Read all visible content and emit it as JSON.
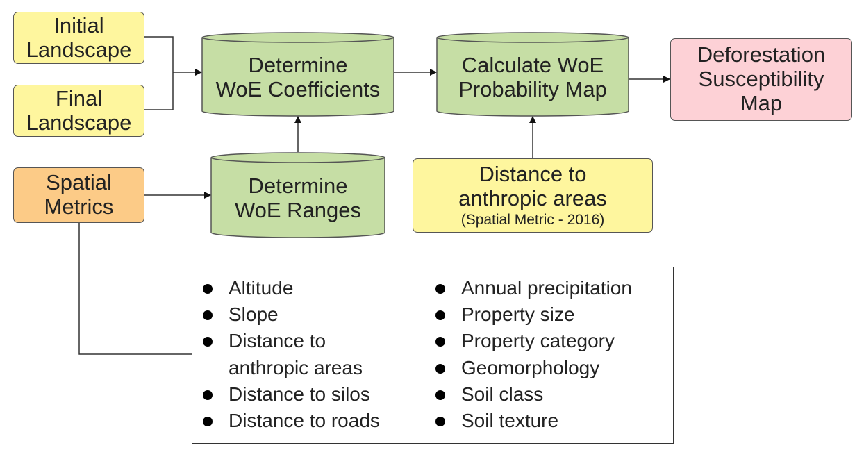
{
  "colors": {
    "input_fill": "#fef69e",
    "metrics_fill": "#fccb87",
    "process_fill": "#c6dea5",
    "output_fill": "#fdd1d6",
    "stroke": "#555555",
    "arrow": "#111111"
  },
  "nodes": {
    "initial_landscape": {
      "lines": [
        "Initial",
        "Landscape"
      ]
    },
    "final_landscape": {
      "lines": [
        "Final",
        "Landscape"
      ]
    },
    "spatial_metrics": {
      "lines": [
        "Spatial",
        "Metrics"
      ]
    },
    "determine_coefficients": {
      "lines": [
        "Determine",
        "WoE Coefficients"
      ]
    },
    "determine_ranges": {
      "lines": [
        "Determine",
        "WoE Ranges"
      ]
    },
    "calculate_probability": {
      "lines": [
        "Calculate WoE",
        "Probability Map"
      ]
    },
    "distance_anthropic": {
      "lines": [
        "Distance to",
        "anthropic areas"
      ],
      "sub": "(Spatial Metric - 2016)"
    },
    "deforestation_map": {
      "lines": [
        "Deforestation",
        "Susceptibility",
        "Map"
      ]
    }
  },
  "metrics_list": {
    "left": [
      "Altitude",
      "Slope",
      "Distance to anthropic areas",
      "Distance to silos",
      "Distance to roads"
    ],
    "right": [
      "Annual precipitation",
      "Property size",
      "Property category",
      "Geomorphology",
      "Soil class",
      "Soil texture"
    ]
  }
}
